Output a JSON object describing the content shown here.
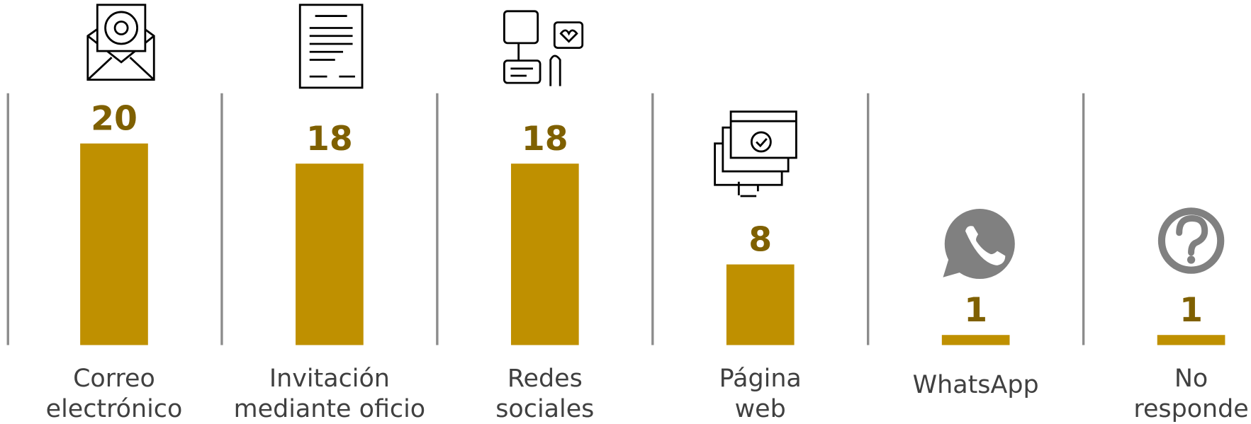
{
  "chart_data": {
    "type": "bar",
    "categories": [
      [
        "Correo",
        "electrónico"
      ],
      [
        "Invitación",
        "mediante oficio"
      ],
      [
        "Redes",
        "sociales"
      ],
      [
        "Página",
        "web"
      ],
      [
        "WhatsApp"
      ],
      [
        "No",
        "responde"
      ]
    ],
    "values": [
      20,
      18,
      18,
      8,
      1,
      1
    ],
    "color": "#bf9000",
    "label_color": "#7f6000"
  }
}
